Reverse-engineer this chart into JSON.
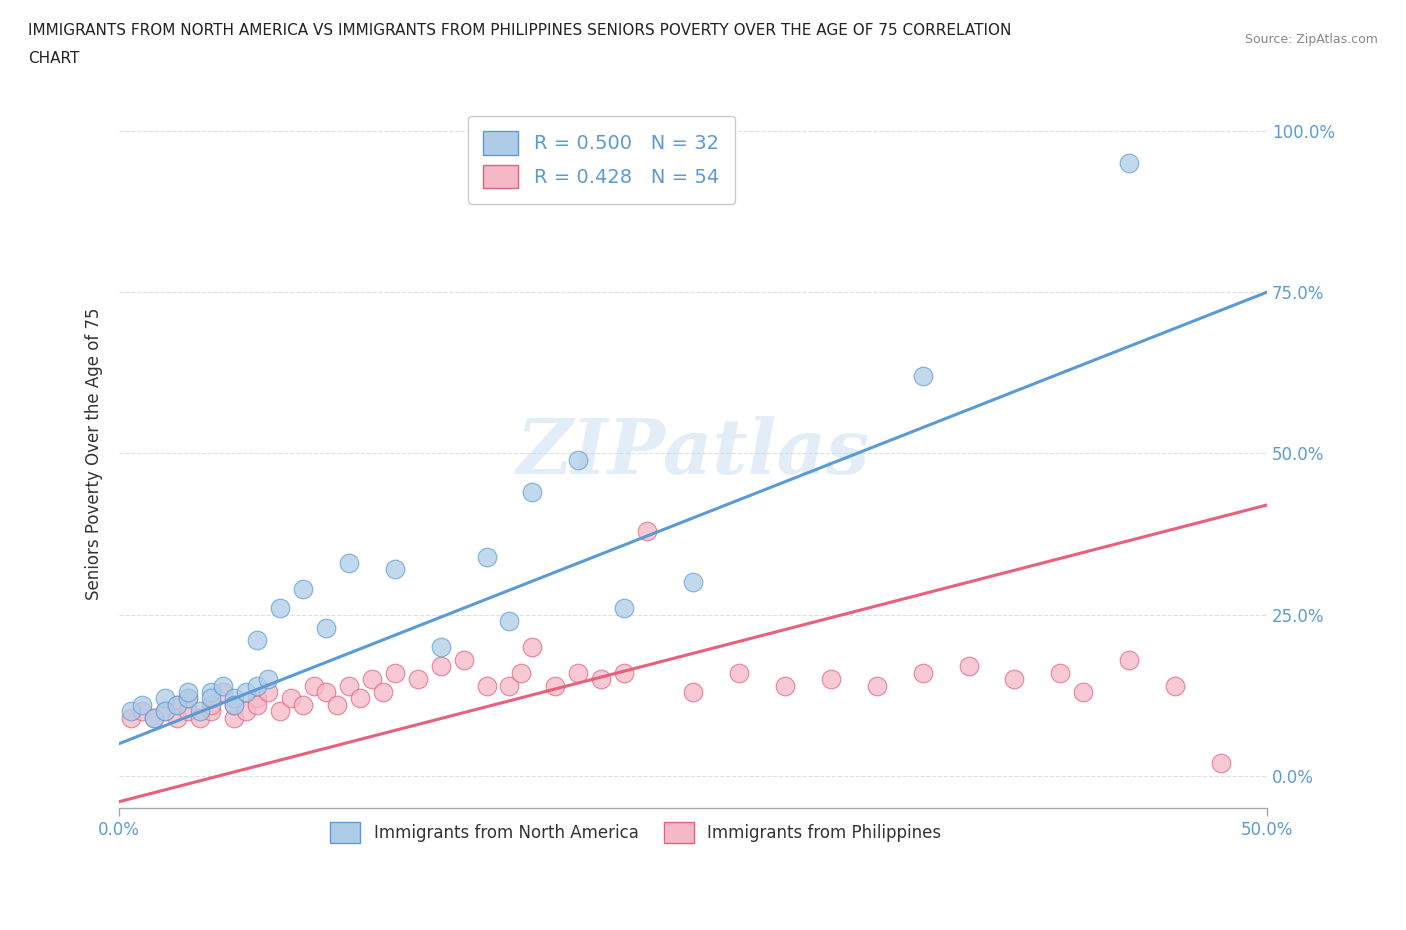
{
  "title_line1": "IMMIGRANTS FROM NORTH AMERICA VS IMMIGRANTS FROM PHILIPPINES SENIORS POVERTY OVER THE AGE OF 75 CORRELATION",
  "title_line2": "CHART",
  "source_text": "Source: ZipAtlas.com",
  "ylabel": "Seniors Poverty Over the Age of 75",
  "legend_label1": "Immigrants from North America",
  "legend_label2": "Immigrants from Philippines",
  "R1": 0.5,
  "N1": 32,
  "R2": 0.428,
  "N2": 54,
  "color1": "#aecce8",
  "color2": "#f5b8c8",
  "line_color1": "#5b9bd5",
  "line_color2": "#e8607a",
  "bg_color": "#ffffff",
  "grid_color": "#d8d8d8",
  "xlim": [
    0.0,
    0.5
  ],
  "ylim": [
    -0.05,
    1.05
  ],
  "ytick_vals": [
    0.0,
    0.25,
    0.5,
    0.75,
    1.0
  ],
  "ytick_labels": [
    "0.0%",
    "25.0%",
    "50.0%",
    "75.0%",
    "100.0%"
  ],
  "xtick_vals": [
    0.0,
    0.5
  ],
  "xtick_labels": [
    "0.0%",
    "50.0%"
  ],
  "watermark": "ZIPatlas",
  "blue_points_x": [
    0.005,
    0.01,
    0.015,
    0.02,
    0.02,
    0.025,
    0.03,
    0.03,
    0.035,
    0.04,
    0.04,
    0.045,
    0.05,
    0.05,
    0.055,
    0.06,
    0.06,
    0.065,
    0.07,
    0.08,
    0.09,
    0.1,
    0.12,
    0.14,
    0.16,
    0.17,
    0.18,
    0.2,
    0.22,
    0.25,
    0.35,
    0.44
  ],
  "blue_points_y": [
    0.1,
    0.11,
    0.09,
    0.12,
    0.1,
    0.11,
    0.12,
    0.13,
    0.1,
    0.13,
    0.12,
    0.14,
    0.12,
    0.11,
    0.13,
    0.14,
    0.21,
    0.15,
    0.26,
    0.29,
    0.23,
    0.33,
    0.32,
    0.2,
    0.34,
    0.24,
    0.44,
    0.49,
    0.26,
    0.3,
    0.62,
    0.95
  ],
  "pink_points_x": [
    0.005,
    0.01,
    0.015,
    0.02,
    0.025,
    0.025,
    0.03,
    0.03,
    0.035,
    0.04,
    0.04,
    0.045,
    0.05,
    0.05,
    0.055,
    0.06,
    0.06,
    0.065,
    0.07,
    0.075,
    0.08,
    0.085,
    0.09,
    0.095,
    0.1,
    0.105,
    0.11,
    0.115,
    0.12,
    0.13,
    0.14,
    0.15,
    0.16,
    0.17,
    0.175,
    0.18,
    0.19,
    0.2,
    0.21,
    0.22,
    0.23,
    0.25,
    0.27,
    0.29,
    0.31,
    0.33,
    0.35,
    0.37,
    0.39,
    0.41,
    0.42,
    0.44,
    0.46,
    0.48
  ],
  "pink_points_y": [
    0.09,
    0.1,
    0.09,
    0.1,
    0.11,
    0.09,
    0.1,
    0.12,
    0.09,
    0.1,
    0.11,
    0.13,
    0.09,
    0.11,
    0.1,
    0.12,
    0.11,
    0.13,
    0.1,
    0.12,
    0.11,
    0.14,
    0.13,
    0.11,
    0.14,
    0.12,
    0.15,
    0.13,
    0.16,
    0.15,
    0.17,
    0.18,
    0.14,
    0.14,
    0.16,
    0.2,
    0.14,
    0.16,
    0.15,
    0.16,
    0.38,
    0.13,
    0.16,
    0.14,
    0.15,
    0.14,
    0.16,
    0.17,
    0.15,
    0.16,
    0.13,
    0.18,
    0.14,
    0.02
  ],
  "trend1_x": [
    0.0,
    0.5
  ],
  "trend1_y": [
    0.05,
    0.75
  ],
  "trend2_x": [
    0.0,
    0.5
  ],
  "trend2_y": [
    -0.04,
    0.42
  ]
}
